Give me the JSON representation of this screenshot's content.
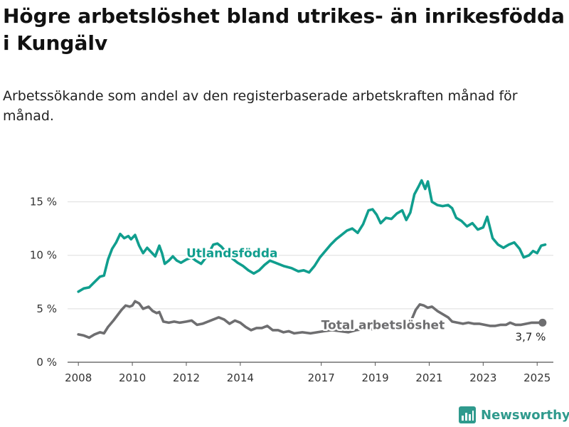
{
  "title": "Högre arbetslöshet bland utrikes- än inrikesfödda i Kungälv",
  "subtitle": "Arbetssökande som andel av den registerbaserade arbetskraften månad för månad.",
  "brand": {
    "name": "Newsworthy",
    "icon": "newsworthy-logo-icon"
  },
  "colors": {
    "utlandsfodda": "#109e8e",
    "total": "#6e6e70",
    "grid": "#dddddd",
    "axis": "#555555",
    "brand": "#2f9a8d"
  },
  "chart_data": {
    "type": "line",
    "xlabel": "",
    "ylabel": "",
    "xlim": [
      2007.6,
      2025.6
    ],
    "ylim": [
      0,
      17.5
    ],
    "x_tick_labels": [
      "2008",
      "2010",
      "2012",
      "2014",
      "2017",
      "2019",
      "2021",
      "2023",
      "2025"
    ],
    "y_tick_labels": [
      "0 %",
      "5 %",
      "10 %",
      "15 %"
    ],
    "y_ticks": [
      0,
      5,
      10,
      15
    ],
    "grid": true,
    "legend": "inline labels",
    "series": [
      {
        "name": "Utlandsfödda",
        "label_position": "inline",
        "points": [
          [
            2008.0,
            6.6
          ],
          [
            2008.2,
            6.9
          ],
          [
            2008.4,
            7.0
          ],
          [
            2008.6,
            7.5
          ],
          [
            2008.8,
            8.0
          ],
          [
            2008.95,
            8.1
          ],
          [
            2009.1,
            9.6
          ],
          [
            2009.25,
            10.6
          ],
          [
            2009.4,
            11.2
          ],
          [
            2009.55,
            12.0
          ],
          [
            2009.7,
            11.6
          ],
          [
            2009.85,
            11.8
          ],
          [
            2009.95,
            11.5
          ],
          [
            2010.1,
            11.9
          ],
          [
            2010.25,
            10.9
          ],
          [
            2010.4,
            10.2
          ],
          [
            2010.55,
            10.7
          ],
          [
            2010.7,
            10.3
          ],
          [
            2010.85,
            9.9
          ],
          [
            2011.0,
            10.9
          ],
          [
            2011.1,
            10.2
          ],
          [
            2011.2,
            9.2
          ],
          [
            2011.35,
            9.5
          ],
          [
            2011.5,
            9.9
          ],
          [
            2011.65,
            9.5
          ],
          [
            2011.8,
            9.3
          ],
          [
            2012.0,
            9.6
          ],
          [
            2012.2,
            9.8
          ],
          [
            2012.35,
            9.5
          ],
          [
            2012.55,
            9.2
          ],
          [
            2012.7,
            9.7
          ],
          [
            2012.85,
            10.3
          ],
          [
            2013.0,
            11.0
          ],
          [
            2013.15,
            11.1
          ],
          [
            2013.3,
            10.8
          ],
          [
            2013.5,
            10.2
          ],
          [
            2013.7,
            9.7
          ],
          [
            2013.9,
            9.3
          ],
          [
            2014.1,
            9.0
          ],
          [
            2014.3,
            8.6
          ],
          [
            2014.5,
            8.3
          ],
          [
            2014.7,
            8.6
          ],
          [
            2014.9,
            9.1
          ],
          [
            2015.1,
            9.5
          ],
          [
            2015.3,
            9.3
          ],
          [
            2015.6,
            9.0
          ],
          [
            2015.9,
            8.8
          ],
          [
            2016.15,
            8.5
          ],
          [
            2016.35,
            8.6
          ],
          [
            2016.55,
            8.4
          ],
          [
            2016.75,
            9.0
          ],
          [
            2016.95,
            9.8
          ],
          [
            2017.15,
            10.4
          ],
          [
            2017.35,
            11.0
          ],
          [
            2017.55,
            11.5
          ],
          [
            2017.75,
            11.9
          ],
          [
            2017.95,
            12.3
          ],
          [
            2018.15,
            12.5
          ],
          [
            2018.35,
            12.1
          ],
          [
            2018.55,
            12.9
          ],
          [
            2018.75,
            14.2
          ],
          [
            2018.9,
            14.3
          ],
          [
            2019.05,
            13.8
          ],
          [
            2019.2,
            13.0
          ],
          [
            2019.4,
            13.5
          ],
          [
            2019.6,
            13.4
          ],
          [
            2019.8,
            13.9
          ],
          [
            2020.0,
            14.2
          ],
          [
            2020.15,
            13.3
          ],
          [
            2020.3,
            14.0
          ],
          [
            2020.45,
            15.7
          ],
          [
            2020.6,
            16.4
          ],
          [
            2020.72,
            17.0
          ],
          [
            2020.85,
            16.2
          ],
          [
            2020.95,
            16.9
          ],
          [
            2021.1,
            15.0
          ],
          [
            2021.3,
            14.7
          ],
          [
            2021.5,
            14.6
          ],
          [
            2021.7,
            14.7
          ],
          [
            2021.85,
            14.4
          ],
          [
            2022.0,
            13.5
          ],
          [
            2022.2,
            13.2
          ],
          [
            2022.4,
            12.7
          ],
          [
            2022.6,
            13.0
          ],
          [
            2022.8,
            12.4
          ],
          [
            2023.0,
            12.6
          ],
          [
            2023.15,
            13.6
          ],
          [
            2023.35,
            11.6
          ],
          [
            2023.55,
            11.0
          ],
          [
            2023.75,
            10.7
          ],
          [
            2023.95,
            11.0
          ],
          [
            2024.15,
            11.2
          ],
          [
            2024.35,
            10.6
          ],
          [
            2024.5,
            9.8
          ],
          [
            2024.7,
            10.0
          ],
          [
            2024.85,
            10.4
          ],
          [
            2025.0,
            10.2
          ],
          [
            2025.15,
            10.9
          ],
          [
            2025.3,
            11.0
          ]
        ]
      },
      {
        "name": "Total arbetslöshet",
        "label_position": "inline",
        "end_label": "3,7 %",
        "points": [
          [
            2008.0,
            2.6
          ],
          [
            2008.2,
            2.5
          ],
          [
            2008.4,
            2.3
          ],
          [
            2008.6,
            2.6
          ],
          [
            2008.8,
            2.8
          ],
          [
            2008.95,
            2.7
          ],
          [
            2009.1,
            3.3
          ],
          [
            2009.3,
            3.9
          ],
          [
            2009.45,
            4.4
          ],
          [
            2009.6,
            4.9
          ],
          [
            2009.75,
            5.3
          ],
          [
            2009.9,
            5.2
          ],
          [
            2010.0,
            5.3
          ],
          [
            2010.1,
            5.7
          ],
          [
            2010.25,
            5.5
          ],
          [
            2010.4,
            5.0
          ],
          [
            2010.6,
            5.2
          ],
          [
            2010.75,
            4.8
          ],
          [
            2010.9,
            4.6
          ],
          [
            2011.0,
            4.7
          ],
          [
            2011.15,
            3.8
          ],
          [
            2011.35,
            3.7
          ],
          [
            2011.55,
            3.8
          ],
          [
            2011.75,
            3.7
          ],
          [
            2012.0,
            3.8
          ],
          [
            2012.2,
            3.9
          ],
          [
            2012.4,
            3.5
          ],
          [
            2012.6,
            3.6
          ],
          [
            2012.8,
            3.8
          ],
          [
            2013.0,
            4.0
          ],
          [
            2013.2,
            4.2
          ],
          [
            2013.4,
            4.0
          ],
          [
            2013.6,
            3.6
          ],
          [
            2013.8,
            3.9
          ],
          [
            2014.0,
            3.7
          ],
          [
            2014.2,
            3.3
          ],
          [
            2014.4,
            3.0
          ],
          [
            2014.6,
            3.2
          ],
          [
            2014.8,
            3.2
          ],
          [
            2015.0,
            3.4
          ],
          [
            2015.2,
            3.0
          ],
          [
            2015.4,
            3.0
          ],
          [
            2015.6,
            2.8
          ],
          [
            2015.8,
            2.9
          ],
          [
            2016.0,
            2.7
          ],
          [
            2016.3,
            2.8
          ],
          [
            2016.6,
            2.7
          ],
          [
            2016.85,
            2.8
          ],
          [
            2017.1,
            2.9
          ],
          [
            2017.4,
            3.0
          ],
          [
            2017.7,
            2.9
          ],
          [
            2018.0,
            2.8
          ],
          [
            2018.3,
            3.0
          ],
          [
            2018.6,
            3.1
          ],
          [
            2018.9,
            3.1
          ],
          [
            2019.2,
            3.2
          ],
          [
            2019.5,
            3.4
          ],
          [
            2019.8,
            3.3
          ],
          [
            2020.0,
            3.3
          ],
          [
            2020.2,
            3.6
          ],
          [
            2020.35,
            4.0
          ],
          [
            2020.5,
            4.9
          ],
          [
            2020.65,
            5.4
          ],
          [
            2020.8,
            5.3
          ],
          [
            2020.95,
            5.1
          ],
          [
            2021.1,
            5.2
          ],
          [
            2021.3,
            4.8
          ],
          [
            2021.5,
            4.5
          ],
          [
            2021.7,
            4.2
          ],
          [
            2021.85,
            3.8
          ],
          [
            2022.05,
            3.7
          ],
          [
            2022.25,
            3.6
          ],
          [
            2022.45,
            3.7
          ],
          [
            2022.65,
            3.6
          ],
          [
            2022.85,
            3.6
          ],
          [
            2023.05,
            3.5
          ],
          [
            2023.25,
            3.4
          ],
          [
            2023.45,
            3.4
          ],
          [
            2023.65,
            3.5
          ],
          [
            2023.85,
            3.5
          ],
          [
            2024.0,
            3.7
          ],
          [
            2024.2,
            3.5
          ],
          [
            2024.4,
            3.5
          ],
          [
            2024.6,
            3.6
          ],
          [
            2024.8,
            3.7
          ],
          [
            2025.0,
            3.7
          ],
          [
            2025.2,
            3.7
          ]
        ]
      }
    ]
  }
}
